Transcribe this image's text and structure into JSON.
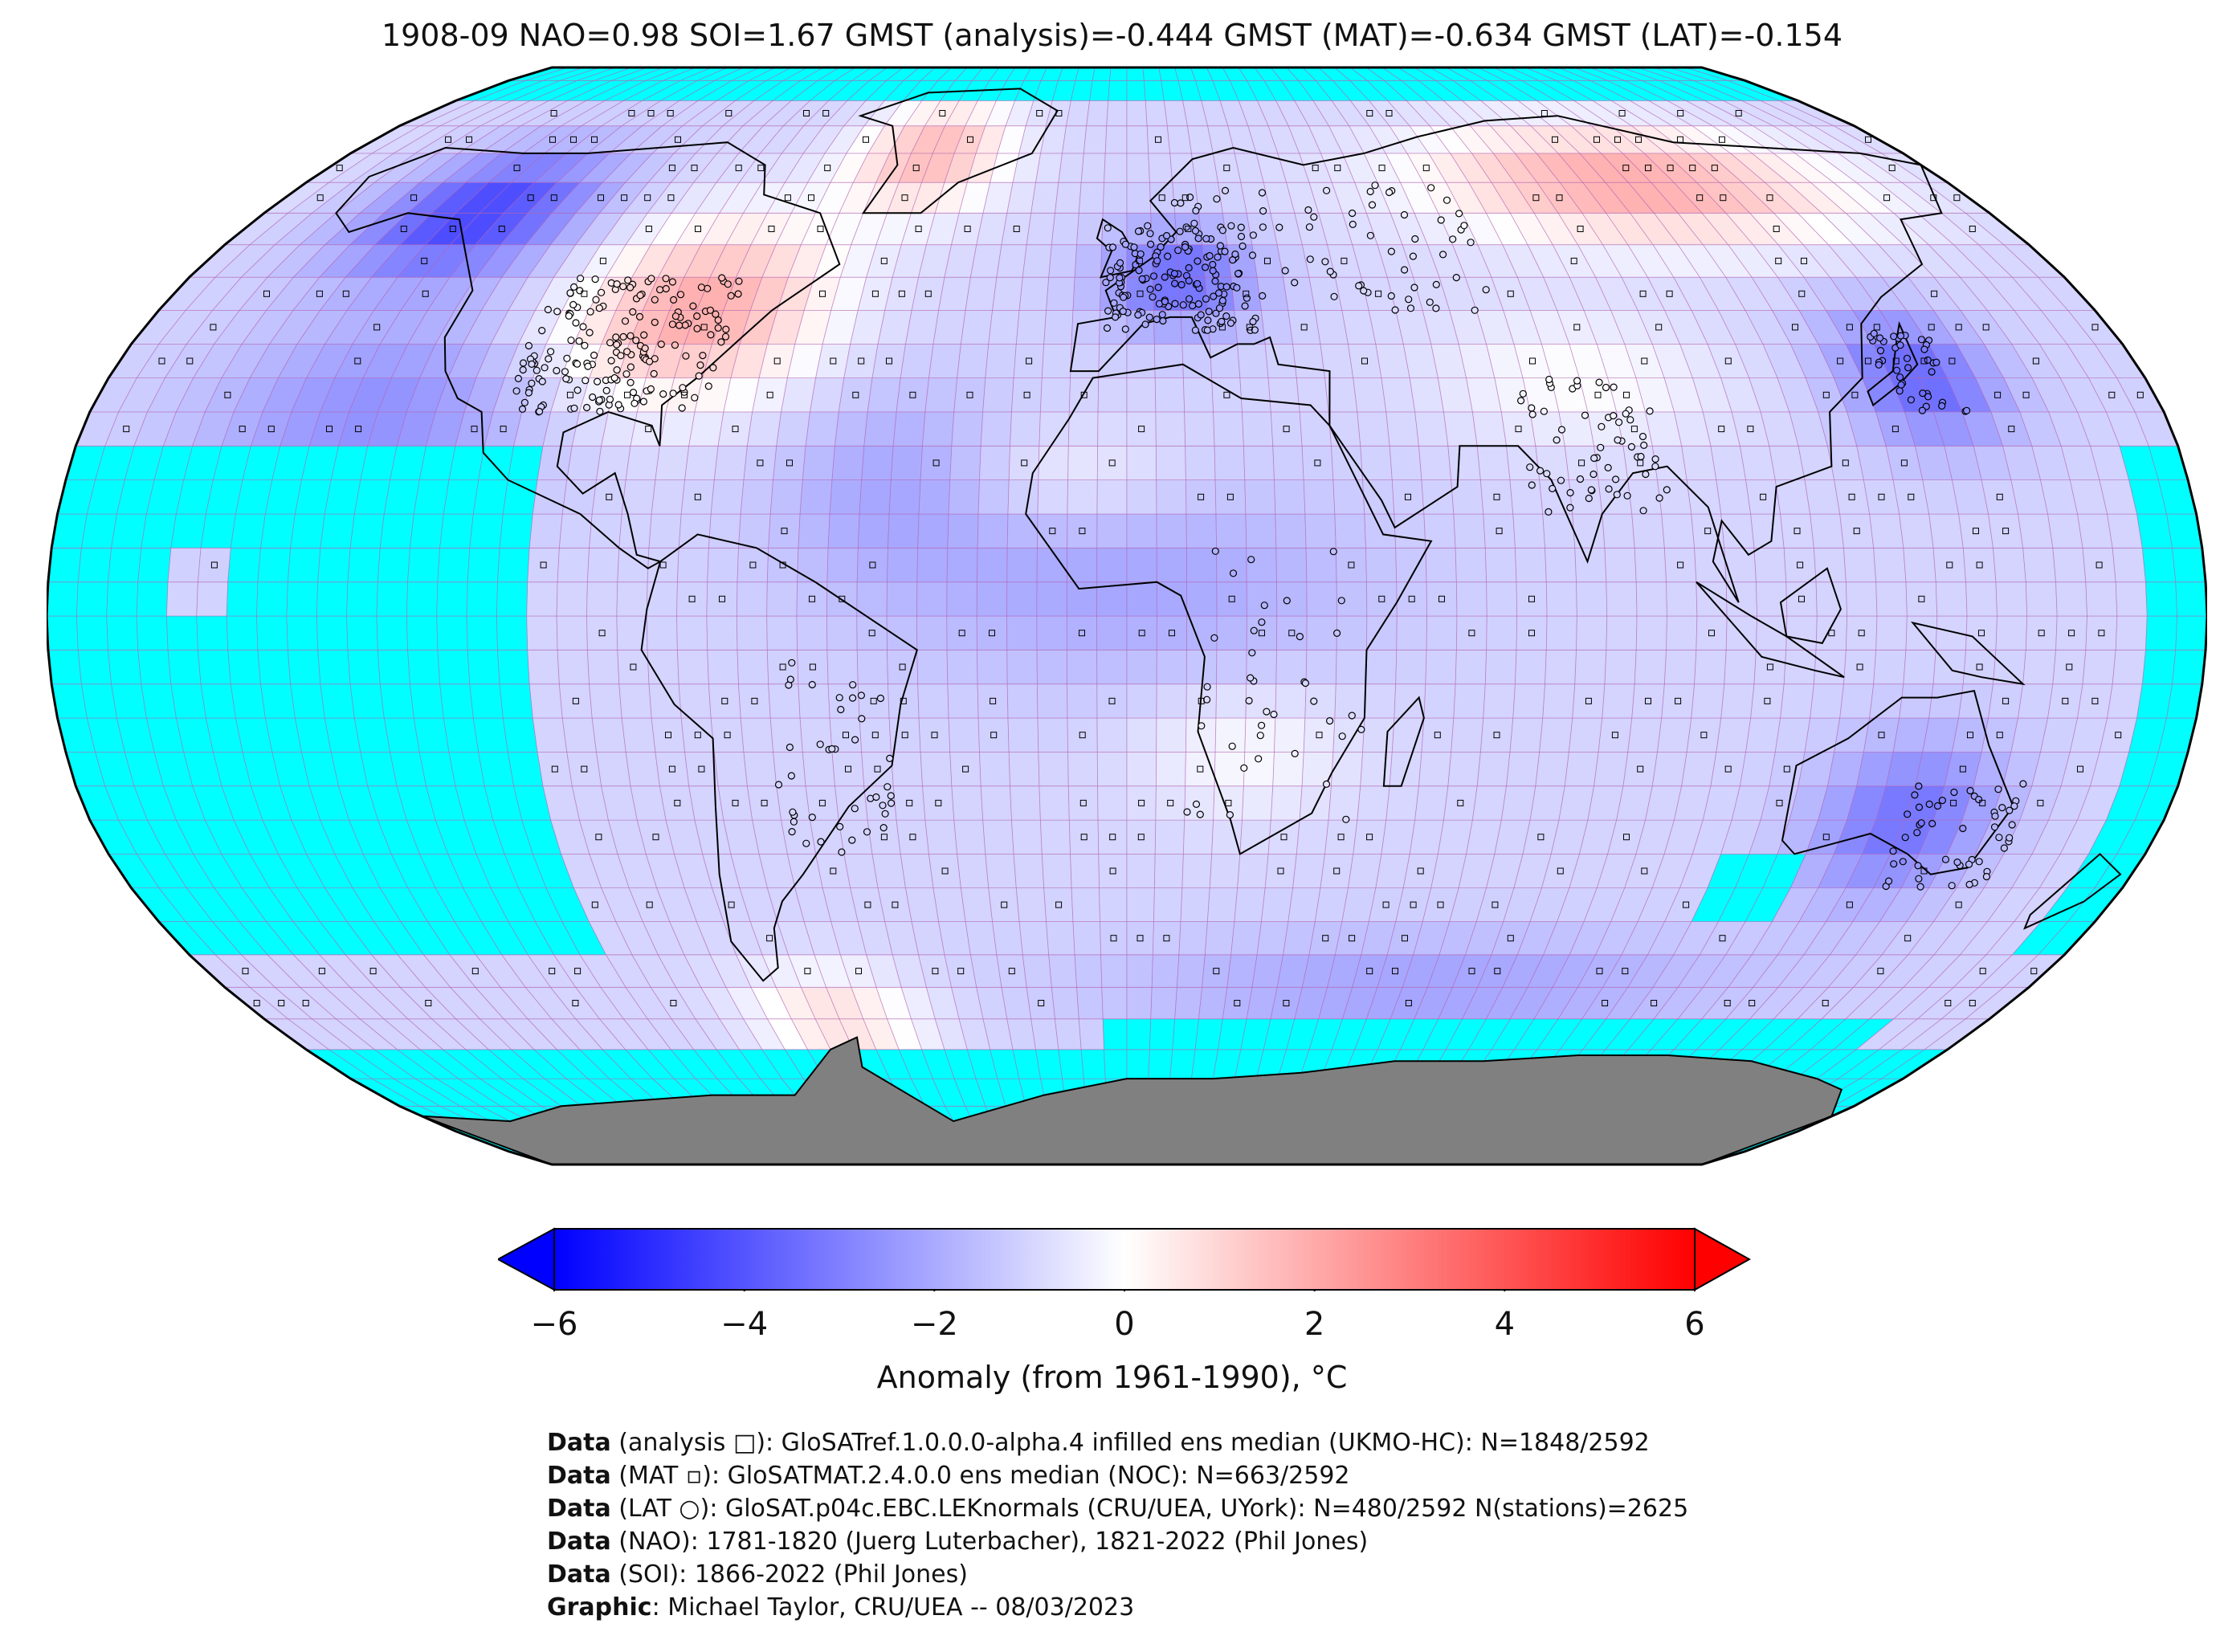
{
  "header": {
    "title": "1908-09 NAO=0.98 SOI=1.67 GMST (analysis)=-0.444 GMST (MAT)=-0.634 GMST (LAT)=-0.154"
  },
  "colors": {
    "missing_data": "#00ffff",
    "land_ice": "#808080",
    "scale_min": "#0000ff",
    "scale_mid": "#ffffff",
    "scale_max": "#ff0000",
    "grid_line": "#b060b0",
    "coastline": "#000000"
  },
  "colorbar": {
    "label": "Anomaly (from 1961-1990), °C",
    "min": -6,
    "max": 6,
    "extend": "both",
    "ticks": [
      {
        "value": -6,
        "label": "−6"
      },
      {
        "value": -4,
        "label": "−4"
      },
      {
        "value": -2,
        "label": "−2"
      },
      {
        "value": 0,
        "label": "0"
      },
      {
        "value": 2,
        "label": "2"
      },
      {
        "value": 4,
        "label": "4"
      },
      {
        "value": 6,
        "label": "6"
      }
    ]
  },
  "map": {
    "projection": "Robinson",
    "grid": "5° lat × 5° lon",
    "legend_markers": [
      "analysis □",
      "MAT ▫",
      "LAT ○"
    ]
  },
  "credits": [
    {
      "label": "Data",
      "text": " (analysis □): GloSATref.1.0.0.0-alpha.4 infilled ens median (UKMO-HC): N=1848/2592"
    },
    {
      "label": "Data",
      "text": " (MAT ▫): GloSATMAT.2.4.0.0 ens median (NOC): N=663/2592"
    },
    {
      "label": "Data",
      "text": " (LAT ○): GloSAT.p04c.EBC.LEKnormals (CRU/UEA, UYork): N=480/2592 N(stations)=2625"
    },
    {
      "label": "Data",
      "text": " (NAO): 1781-1820 (Juerg Luterbacher), 1821-2022 (Phil Jones)"
    },
    {
      "label": "Data",
      "text": " (SOI): 1866-2022 (Phil Jones)"
    },
    {
      "label": "Graphic",
      "text": ": Michael Taylor, CRU/UEA -- 08/03/2023"
    }
  ]
}
